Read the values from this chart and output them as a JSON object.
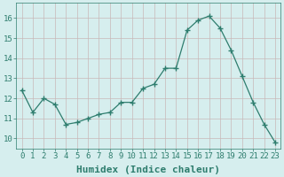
{
  "x": [
    0,
    1,
    2,
    3,
    4,
    5,
    6,
    7,
    8,
    9,
    10,
    11,
    12,
    13,
    14,
    15,
    16,
    17,
    18,
    19,
    20,
    21,
    22,
    23
  ],
  "y": [
    12.4,
    11.3,
    12.0,
    11.7,
    10.7,
    10.8,
    11.0,
    11.2,
    11.3,
    11.8,
    11.8,
    12.5,
    12.7,
    13.5,
    13.5,
    15.4,
    15.9,
    16.1,
    15.5,
    14.4,
    13.1,
    11.8,
    10.7,
    9.8
  ],
  "line_color": "#2e7d6e",
  "marker": "+",
  "marker_size": 4,
  "bg_color": "#d6eeee",
  "grid_color": "#c8b8b8",
  "xlabel": "Humidex (Indice chaleur)",
  "xlim": [
    -0.5,
    23.5
  ],
  "ylim": [
    9.5,
    16.75
  ],
  "xticks": [
    0,
    1,
    2,
    3,
    4,
    5,
    6,
    7,
    8,
    9,
    10,
    11,
    12,
    13,
    14,
    15,
    16,
    17,
    18,
    19,
    20,
    21,
    22,
    23
  ],
  "yticks": [
    10,
    11,
    12,
    13,
    14,
    15,
    16
  ],
  "tick_fontsize": 6.5,
  "xlabel_fontsize": 8,
  "line_width": 0.9
}
